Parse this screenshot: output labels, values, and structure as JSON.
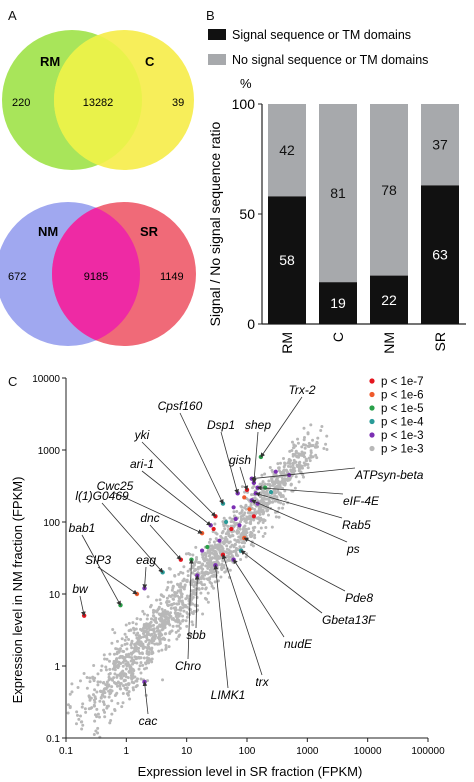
{
  "panels": {
    "a": "A",
    "b": "B",
    "c": "C"
  },
  "venn_top": {
    "left_label": "RM",
    "right_label": "C",
    "left_only": "220",
    "overlap": "13282",
    "right_only": "39"
  },
  "venn_bottom": {
    "left_label": "NM",
    "right_label": "SR",
    "left_only": "672",
    "overlap": "9185",
    "right_only": "1149"
  },
  "colors": {
    "rm": "#a8e55a",
    "c": "#f7ee5a",
    "rm_c_overlap": "#e9f24a",
    "nm": "#a0a8f0",
    "sr": "#f06a78",
    "nm_sr_overlap": "#ee2aa4",
    "signal": "#111111",
    "no_signal": "#a7a9ac",
    "points": "#b8b8b8",
    "p7": "#e4151e",
    "p6": "#ef5a2c",
    "p5": "#29a04a",
    "p4": "#2a9b98",
    "p3": "#7b2fb3"
  },
  "chart_data": [
    {
      "type": "bar",
      "stacked": true,
      "ylabel": "Signal / No signal sequence ratio",
      "unit_label": "%",
      "ylim": [
        0,
        100
      ],
      "yticks": [
        "0",
        "50",
        "100"
      ],
      "categories": [
        "RM",
        "C",
        "NM",
        "SR"
      ],
      "series": [
        {
          "name": "Signal sequence or TM domains",
          "values": [
            58,
            19,
            22,
            63
          ]
        },
        {
          "name": "No signal sequence or TM domains",
          "values": [
            42,
            81,
            78,
            37
          ]
        }
      ],
      "legend_position": "top"
    },
    {
      "type": "scatter",
      "xlabel": "Expression level in SR fraction (FPKM)",
      "ylabel": "Expression level in NM fraction (FPKM)",
      "xscale": "log",
      "yscale": "log",
      "xlim": [
        0.1,
        100000
      ],
      "ylim": [
        0.1,
        10000
      ],
      "xticks": [
        "0.1",
        "1",
        "10",
        "100",
        "1000",
        "10000",
        "100000"
      ],
      "yticks": [
        "0.1",
        "1",
        "10",
        "100",
        "1000",
        "10000"
      ],
      "legend": [
        "p < 1e-7",
        "p < 1e-6",
        "p < 1e-5",
        "p < 1e-4",
        "p < 1e-3",
        "p > 1e-3"
      ],
      "legend_position": "top-right",
      "gene_labels": [
        "Trx-2",
        "Cpsf160",
        "Dsp1",
        "shep",
        "yki",
        "gish",
        "ari-1",
        "Cwc25",
        "l(1)G0469",
        "bab1",
        "dnc",
        "SIP3",
        "eag",
        "bw",
        "ATPsyn-beta",
        "eIF-4E",
        "Rab5",
        "ps",
        "Pde8",
        "Gbeta13F",
        "nudE",
        "trx",
        "LIMK1",
        "Chro",
        "sbb",
        "cac"
      ],
      "highlighted_points": [
        {
          "gene": "Trx-2",
          "x": 170,
          "y": 800,
          "p": "p < 1e-5"
        },
        {
          "gene": "ATPsyn-beta",
          "x": 120,
          "y": 400,
          "p": "p < 1e-3"
        },
        {
          "gene": "eIF-4E",
          "x": 150,
          "y": 300,
          "p": "p < 1e-3"
        },
        {
          "gene": "Rab5",
          "x": 140,
          "y": 250,
          "p": "p < 1e-3"
        },
        {
          "gene": "ps",
          "x": 120,
          "y": 200,
          "p": "p < 1e-3"
        },
        {
          "gene": "shep",
          "x": 130,
          "y": 350,
          "p": "p < 1e-3"
        },
        {
          "gene": "gish",
          "x": 100,
          "y": 280,
          "p": "p < 1e-7"
        },
        {
          "gene": "Dsp1",
          "x": 70,
          "y": 250,
          "p": "p < 1e-3"
        },
        {
          "gene": "Cpsf160",
          "x": 40,
          "y": 180,
          "p": "p < 1e-4"
        },
        {
          "gene": "yki",
          "x": 30,
          "y": 120,
          "p": "p < 1e-7"
        },
        {
          "gene": "ari-1",
          "x": 25,
          "y": 90,
          "p": "p < 1e-3"
        },
        {
          "gene": "Cwc25",
          "x": 18,
          "y": 70,
          "p": "p < 1e-6"
        },
        {
          "gene": "dnc",
          "x": 8,
          "y": 30,
          "p": "p < 1e-7"
        },
        {
          "gene": "l(1)G0469",
          "x": 4,
          "y": 20,
          "p": "p < 1e-4"
        },
        {
          "gene": "bab1",
          "x": 0.8,
          "y": 7,
          "p": "p < 1e-5"
        },
        {
          "gene": "SIP3",
          "x": 1.5,
          "y": 10,
          "p": "p < 1e-6"
        },
        {
          "gene": "eag",
          "x": 2,
          "y": 12,
          "p": "p < 1e-3"
        },
        {
          "gene": "bw",
          "x": 0.2,
          "y": 5,
          "p": "p < 1e-7"
        },
        {
          "gene": "Pde8",
          "x": 90,
          "y": 60,
          "p": "p < 1e-6"
        },
        {
          "gene": "Gbeta13F",
          "x": 80,
          "y": 40,
          "p": "p < 1e-4"
        },
        {
          "gene": "nudE",
          "x": 60,
          "y": 30,
          "p": "p < 1e-3"
        },
        {
          "gene": "trx",
          "x": 40,
          "y": 35,
          "p": "p < 1e-7"
        },
        {
          "gene": "LIMK1",
          "x": 30,
          "y": 25,
          "p": "p < 1e-3"
        },
        {
          "gene": "Chro",
          "x": 12,
          "y": 30,
          "p": "p < 1e-5"
        },
        {
          "gene": "sbb",
          "x": 15,
          "y": 18,
          "p": "p < 1e-3"
        },
        {
          "gene": "cac",
          "x": 2,
          "y": 0.6,
          "p": "p < 1e-3"
        }
      ]
    }
  ]
}
